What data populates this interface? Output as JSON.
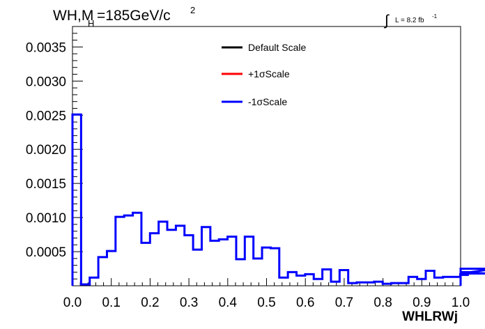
{
  "header": {
    "title_main": "WH,M",
    "title_sub": "H",
    "title_rest": "=185GeV/c",
    "title_sup": "2",
    "lumi_integral": "∫",
    "lumi_text": "L = 8.2 fb",
    "lumi_sup": "-1"
  },
  "legend": {
    "entries": [
      {
        "label": "Default Scale",
        "color": "#000000"
      },
      {
        "label": "+1σScale",
        "color": "#ff0000"
      },
      {
        "label": "-1σScale",
        "color": "#0000ff"
      }
    ]
  },
  "chart_data": {
    "type": "line",
    "style": "histogram-step",
    "xlabel": "WHLRWj",
    "ylabel": "",
    "xlim": [
      0.0,
      1.0
    ],
    "ylim": [
      0.0,
      0.0038
    ],
    "x_ticks": [
      "0.0",
      "0.1",
      "0.2",
      "0.3",
      "0.4",
      "0.5",
      "0.6",
      "0.7",
      "0.8",
      "0.9",
      "1.0"
    ],
    "x_tick_values": [
      0.0,
      0.1,
      0.2,
      0.3,
      0.4,
      0.5,
      0.6,
      0.7,
      0.8,
      0.9,
      1.0
    ],
    "y_ticks": [
      "0.0005",
      "0.0010",
      "0.0015",
      "0.0020",
      "0.0025",
      "0.0030",
      "0.0035"
    ],
    "y_tick_values": [
      0.0005,
      0.001,
      0.0015,
      0.002,
      0.0025,
      0.003,
      0.0035
    ],
    "bin_edges_start": 0.0,
    "bin_width": 0.0222,
    "series": [
      {
        "name": "-1σScale",
        "color": "#0000ff",
        "values": [
          0.00251,
          2e-05,
          0.00012,
          0.00042,
          0.00051,
          0.00101,
          0.00103,
          0.00107,
          0.00063,
          0.00077,
          0.00094,
          0.00082,
          0.00088,
          0.00074,
          0.00053,
          0.00086,
          0.00066,
          0.00068,
          0.00072,
          0.00039,
          0.00072,
          0.0004,
          0.00056,
          0.00055,
          0.00012,
          0.0002,
          0.00015,
          0.00017,
          0.0001,
          0.00024,
          6e-05,
          0.00023,
          4e-05,
          5e-05,
          5e-05,
          6e-05,
          3e-05,
          4e-05,
          4e-05,
          0.00013,
          0.0001,
          0.00022,
          0.00012,
          0.00013,
          0.00013,
          0.00017,
          0.00016,
          0.0002,
          0.00018,
          0.00025
        ]
      }
    ]
  }
}
